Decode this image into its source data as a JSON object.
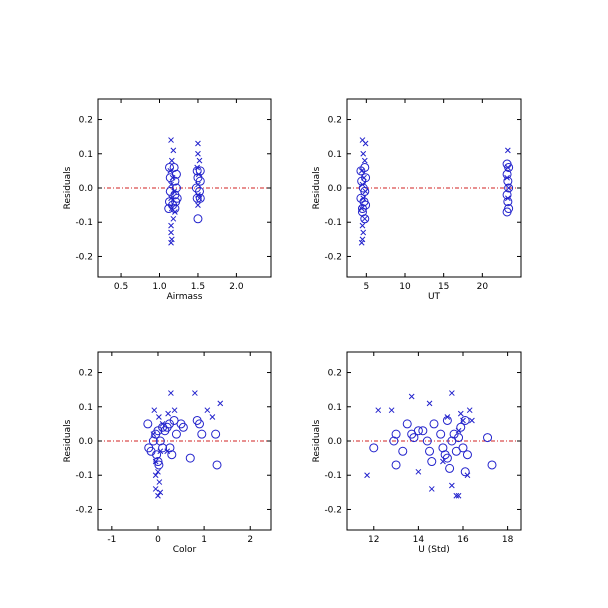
{
  "colors": {
    "marker": "#2222cc",
    "zero_line": "#d02020",
    "frame": "#000000"
  },
  "chart_data": [
    {
      "type": "scatter",
      "xlabel": "Airmass",
      "ylabel": "Residuals",
      "xlim": [
        0.2,
        2.45
      ],
      "ylim": [
        -0.26,
        0.26
      ],
      "xticks": [
        0.5,
        1.0,
        1.5,
        2.0
      ],
      "xtick_labels": [
        "0.5",
        "1.0",
        "1.5",
        "2.0"
      ],
      "yticks": [
        -0.2,
        -0.1,
        0.0,
        0.1,
        0.2
      ],
      "ytick_labels": [
        "-0.2",
        "-0.1",
        "0.0",
        "0.1",
        "0.2"
      ],
      "zero_line": 0,
      "grid": false,
      "series": [
        {
          "marker": "x",
          "points": [
            [
              1.15,
              0.14
            ],
            [
              1.18,
              0.11
            ],
            [
              1.16,
              0.08
            ],
            [
              1.14,
              0.05
            ],
            [
              1.17,
              0.03
            ],
            [
              1.15,
              0.01
            ],
            [
              1.19,
              -0.01
            ],
            [
              1.15,
              -0.03
            ],
            [
              1.16,
              -0.06
            ],
            [
              1.18,
              -0.09
            ],
            [
              1.15,
              -0.11
            ],
            [
              1.15,
              -0.13
            ],
            [
              1.16,
              -0.15
            ],
            [
              1.15,
              -0.16
            ],
            [
              1.2,
              -0.07
            ],
            [
              1.5,
              0.13
            ],
            [
              1.5,
              0.1
            ],
            [
              1.52,
              0.08
            ],
            [
              1.49,
              0.06
            ],
            [
              1.51,
              0.04
            ],
            [
              1.5,
              0.01
            ],
            [
              1.5,
              -0.02
            ],
            [
              1.52,
              -0.03
            ],
            [
              1.5,
              -0.05
            ]
          ]
        },
        {
          "marker": "o",
          "points": [
            [
              1.13,
              0.06
            ],
            [
              1.19,
              0.06
            ],
            [
              1.22,
              0.04
            ],
            [
              1.14,
              0.03
            ],
            [
              1.2,
              0.02
            ],
            [
              1.22,
              0.0
            ],
            [
              1.14,
              -0.01
            ],
            [
              1.2,
              -0.02
            ],
            [
              1.13,
              -0.04
            ],
            [
              1.21,
              -0.04
            ],
            [
              1.17,
              -0.05
            ],
            [
              1.12,
              -0.06
            ],
            [
              1.2,
              -0.06
            ],
            [
              1.23,
              -0.03
            ],
            [
              1.49,
              0.05
            ],
            [
              1.53,
              0.05
            ],
            [
              1.5,
              0.03
            ],
            [
              1.53,
              0.02
            ],
            [
              1.48,
              0.0
            ],
            [
              1.52,
              -0.01
            ],
            [
              1.49,
              -0.03
            ],
            [
              1.53,
              -0.03
            ],
            [
              1.5,
              -0.09
            ]
          ]
        }
      ]
    },
    {
      "type": "scatter",
      "xlabel": "UT",
      "ylabel": "Residuals",
      "xlim": [
        2.5,
        25.0
      ],
      "ylim": [
        -0.26,
        0.26
      ],
      "xticks": [
        5,
        10,
        15,
        20
      ],
      "xtick_labels": [
        "5",
        "10",
        "15",
        "20"
      ],
      "yticks": [
        -0.2,
        -0.1,
        0.0,
        0.1,
        0.2
      ],
      "ytick_labels": [
        "-0.2",
        "-0.1",
        "0.0",
        "0.1",
        "0.2"
      ],
      "zero_line": 0,
      "grid": false,
      "series": [
        {
          "marker": "x",
          "points": [
            [
              4.5,
              0.14
            ],
            [
              4.9,
              0.13
            ],
            [
              4.6,
              0.1
            ],
            [
              4.8,
              0.08
            ],
            [
              4.4,
              0.05
            ],
            [
              4.7,
              0.03
            ],
            [
              4.5,
              0.01
            ],
            [
              4.9,
              -0.01
            ],
            [
              4.6,
              -0.03
            ],
            [
              4.4,
              -0.06
            ],
            [
              4.8,
              -0.09
            ],
            [
              4.5,
              -0.11
            ],
            [
              4.6,
              -0.13
            ],
            [
              4.5,
              -0.15
            ],
            [
              4.4,
              -0.16
            ],
            [
              23.3,
              0.11
            ],
            [
              23.3,
              0.06
            ],
            [
              23.2,
              0.03
            ],
            [
              23.4,
              0.0
            ],
            [
              23.3,
              -0.03
            ]
          ]
        },
        {
          "marker": "o",
          "points": [
            [
              4.3,
              0.05
            ],
            [
              4.8,
              0.06
            ],
            [
              4.9,
              0.03
            ],
            [
              4.4,
              0.02
            ],
            [
              4.6,
              0.0
            ],
            [
              4.8,
              -0.01
            ],
            [
              4.3,
              -0.03
            ],
            [
              4.7,
              -0.04
            ],
            [
              4.9,
              -0.05
            ],
            [
              4.5,
              -0.06
            ],
            [
              4.8,
              -0.09
            ],
            [
              4.5,
              -0.07
            ],
            [
              23.2,
              0.07
            ],
            [
              23.4,
              0.06
            ],
            [
              23.2,
              0.04
            ],
            [
              23.3,
              0.02
            ],
            [
              23.4,
              0.0
            ],
            [
              23.2,
              -0.02
            ],
            [
              23.3,
              -0.04
            ],
            [
              23.4,
              -0.06
            ],
            [
              23.2,
              -0.07
            ]
          ]
        }
      ]
    },
    {
      "type": "scatter",
      "xlabel": "Color",
      "ylabel": "Residuals",
      "xlim": [
        -1.3,
        2.45
      ],
      "ylim": [
        -0.26,
        0.26
      ],
      "xticks": [
        -1,
        0,
        1,
        2
      ],
      "xtick_labels": [
        "-1",
        "0",
        "1",
        "2"
      ],
      "yticks": [
        -0.2,
        -0.1,
        0.0,
        0.1,
        0.2
      ],
      "ytick_labels": [
        "-0.2",
        "-0.1",
        "0.0",
        "0.1",
        "0.2"
      ],
      "zero_line": 0,
      "grid": false,
      "series": [
        {
          "marker": "x",
          "points": [
            [
              -0.08,
              0.09
            ],
            [
              0.02,
              0.07
            ],
            [
              0.22,
              0.08
            ],
            [
              0.28,
              0.14
            ],
            [
              0.36,
              0.09
            ],
            [
              0.8,
              0.14
            ],
            [
              1.07,
              0.09
            ],
            [
              1.18,
              0.07
            ],
            [
              1.35,
              0.11
            ],
            [
              0.1,
              0.05
            ],
            [
              -0.1,
              0.02
            ],
            [
              0.05,
              -0.03
            ],
            [
              -0.05,
              -0.06
            ],
            [
              0.0,
              -0.09
            ],
            [
              -0.05,
              -0.1
            ],
            [
              0.03,
              -0.12
            ],
            [
              -0.05,
              -0.14
            ],
            [
              0.05,
              -0.15
            ],
            [
              0.0,
              -0.16
            ],
            [
              0.2,
              -0.03
            ]
          ]
        },
        {
          "marker": "o",
          "points": [
            [
              -0.2,
              -0.02
            ],
            [
              -0.15,
              -0.03
            ],
            [
              -0.1,
              0.0
            ],
            [
              -0.05,
              0.02
            ],
            [
              0.0,
              0.03
            ],
            [
              0.05,
              0.0
            ],
            [
              0.1,
              -0.02
            ],
            [
              0.15,
              0.03
            ],
            [
              0.2,
              0.04
            ],
            [
              0.25,
              0.05
            ],
            [
              0.3,
              -0.04
            ],
            [
              0.35,
              0.06
            ],
            [
              0.4,
              0.02
            ],
            [
              0.5,
              0.05
            ],
            [
              0.55,
              0.04
            ],
            [
              0.7,
              -0.05
            ],
            [
              0.85,
              0.06
            ],
            [
              0.9,
              0.05
            ],
            [
              0.95,
              0.02
            ],
            [
              1.25,
              0.02
            ],
            [
              1.28,
              -0.07
            ],
            [
              0.0,
              -0.06
            ],
            [
              0.02,
              -0.07
            ],
            [
              -0.03,
              -0.04
            ],
            [
              0.1,
              0.04
            ],
            [
              0.26,
              -0.02
            ],
            [
              -0.22,
              0.05
            ]
          ]
        }
      ]
    },
    {
      "type": "scatter",
      "xlabel": "U (Std)",
      "ylabel": "Residuals",
      "xlim": [
        10.8,
        18.6
      ],
      "ylim": [
        -0.26,
        0.26
      ],
      "xticks": [
        12,
        14,
        16,
        18
      ],
      "xtick_labels": [
        "12",
        "14",
        "16",
        "18"
      ],
      "yticks": [
        -0.2,
        -0.1,
        0.0,
        0.1,
        0.2
      ],
      "ytick_labels": [
        "-0.2",
        "-0.1",
        "0.0",
        "0.1",
        "0.2"
      ],
      "zero_line": 0,
      "grid": false,
      "series": [
        {
          "marker": "x",
          "points": [
            [
              11.7,
              -0.1
            ],
            [
              12.2,
              0.09
            ],
            [
              12.8,
              0.09
            ],
            [
              13.7,
              0.13
            ],
            [
              14.5,
              0.11
            ],
            [
              15.3,
              0.07
            ],
            [
              15.5,
              0.14
            ],
            [
              15.9,
              0.08
            ],
            [
              16.3,
              0.09
            ],
            [
              16.4,
              0.06
            ],
            [
              15.5,
              -0.13
            ],
            [
              15.8,
              -0.16
            ],
            [
              15.7,
              -0.16
            ],
            [
              16.2,
              -0.1
            ],
            [
              14.6,
              -0.14
            ],
            [
              15.1,
              -0.06
            ],
            [
              15.8,
              0.03
            ],
            [
              14.0,
              -0.09
            ],
            [
              16.0,
              0.06
            ]
          ]
        },
        {
          "marker": "o",
          "points": [
            [
              12.0,
              -0.02
            ],
            [
              12.9,
              0.0
            ],
            [
              13.0,
              0.02
            ],
            [
              13.0,
              -0.07
            ],
            [
              13.3,
              -0.03
            ],
            [
              13.5,
              0.05
            ],
            [
              13.7,
              0.02
            ],
            [
              13.8,
              0.01
            ],
            [
              14.0,
              0.03
            ],
            [
              14.2,
              0.03
            ],
            [
              14.4,
              0.0
            ],
            [
              14.5,
              -0.03
            ],
            [
              14.6,
              -0.06
            ],
            [
              14.7,
              0.05
            ],
            [
              15.0,
              0.02
            ],
            [
              15.1,
              -0.02
            ],
            [
              15.2,
              -0.04
            ],
            [
              15.3,
              0.06
            ],
            [
              15.4,
              -0.08
            ],
            [
              15.5,
              0.0
            ],
            [
              15.6,
              0.02
            ],
            [
              15.7,
              -0.03
            ],
            [
              15.8,
              0.01
            ],
            [
              15.9,
              0.04
            ],
            [
              16.0,
              -0.02
            ],
            [
              16.1,
              0.06
            ],
            [
              16.2,
              -0.04
            ],
            [
              16.1,
              -0.09
            ],
            [
              17.1,
              0.01
            ],
            [
              17.3,
              -0.07
            ],
            [
              15.3,
              -0.05
            ]
          ]
        }
      ]
    }
  ]
}
